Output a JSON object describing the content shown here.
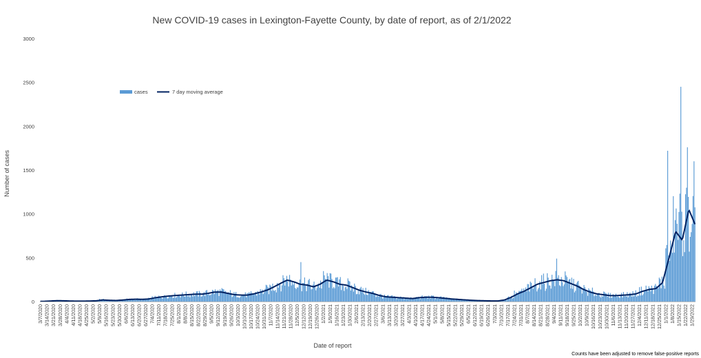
{
  "chart_data": {
    "type": "bar",
    "title": "New COVID-19 cases in Lexington-Fayette County, by date of report, as of 2/1/2022",
    "xlabel": "Date of report",
    "ylabel": "Number of cases",
    "ylim": [
      0,
      3000
    ],
    "yticks": [
      0,
      500,
      1000,
      1500,
      2000,
      2500,
      3000
    ],
    "x_start": "3/7/2020",
    "x_end": "2/1/2022",
    "xtick_labels": [
      "3/7/2020",
      "3/14/2020",
      "3/21/2020",
      "3/28/2020",
      "4/4/2020",
      "4/11/2020",
      "4/18/2020",
      "4/25/2020",
      "5/2/2020",
      "5/9/2020",
      "5/16/2020",
      "5/23/2020",
      "5/30/2020",
      "6/6/2020",
      "6/13/2020",
      "6/20/2020",
      "6/27/2020",
      "7/4/2020",
      "7/11/2020",
      "7/18/2020",
      "7/25/2020",
      "8/1/2020",
      "8/8/2020",
      "8/15/2020",
      "8/22/2020",
      "8/29/2020",
      "9/5/2020",
      "9/12/2020",
      "9/19/2020",
      "9/26/2020",
      "10/3/2020",
      "10/10/2020",
      "10/17/2020",
      "10/24/2020",
      "10/31/2020",
      "11/7/2020",
      "11/14/2020",
      "11/21/2020",
      "11/28/2020",
      "12/5/2020",
      "12/12/2020",
      "12/19/2020",
      "12/26/2020",
      "1/2/2021",
      "1/9/2021",
      "1/16/2021",
      "1/23/2021",
      "1/30/2021",
      "2/6/2021",
      "2/13/2021",
      "2/20/2021",
      "2/27/2021",
      "3/6/2021",
      "3/13/2021",
      "3/20/2021",
      "3/27/2021",
      "4/3/2021",
      "4/10/2021",
      "4/17/2021",
      "4/24/2021",
      "5/1/2021",
      "5/8/2021",
      "5/15/2021",
      "5/22/2021",
      "5/29/2021",
      "6/5/2021",
      "6/12/2021",
      "6/19/2021",
      "6/26/2021",
      "7/3/2021",
      "7/10/2021",
      "7/17/2021",
      "7/24/2021",
      "7/31/2021",
      "8/7/2021",
      "8/14/2021",
      "8/21/2021",
      "8/28/2021",
      "9/4/2021",
      "9/11/2021",
      "9/18/2021",
      "9/25/2021",
      "10/2/2021",
      "10/9/2021",
      "10/16/2021",
      "10/23/2021",
      "10/30/2021",
      "11/6/2021",
      "11/13/2021",
      "11/20/2021",
      "11/27/2021",
      "12/4/2021",
      "12/11/2021",
      "12/18/2021",
      "12/25/2021",
      "1/1/2022",
      "1/8/2022",
      "1/15/2022",
      "1/22/2022",
      "1/29/2022"
    ],
    "series": [
      {
        "name": "cases",
        "type": "bar",
        "color": "#5b9bd5"
      },
      {
        "name": "7 day moving average",
        "type": "line",
        "color": "#002060"
      }
    ],
    "cases_weekly_avg": [
      3,
      8,
      12,
      10,
      6,
      5,
      5,
      6,
      10,
      22,
      15,
      12,
      18,
      25,
      28,
      25,
      30,
      45,
      55,
      65,
      70,
      75,
      80,
      85,
      85,
      95,
      110,
      110,
      95,
      80,
      75,
      75,
      90,
      110,
      135,
      170,
      210,
      250,
      230,
      200,
      190,
      170,
      200,
      250,
      230,
      200,
      190,
      160,
      130,
      110,
      95,
      70,
      55,
      50,
      45,
      40,
      35,
      45,
      50,
      50,
      45,
      38,
      30,
      25,
      20,
      15,
      12,
      10,
      8,
      8,
      20,
      50,
      90,
      120,
      160,
      200,
      220,
      240,
      250,
      240,
      210,
      180,
      140,
      110,
      90,
      80,
      70,
      70,
      75,
      80,
      90,
      120,
      140,
      150,
      220,
      500,
      850,
      900,
      950,
      870
    ],
    "avg_weekly": [
      2,
      6,
      10,
      9,
      6,
      5,
      5,
      6,
      9,
      18,
      14,
      12,
      17,
      24,
      27,
      25,
      29,
      44,
      54,
      63,
      69,
      74,
      79,
      84,
      84,
      94,
      108,
      108,
      93,
      78,
      74,
      74,
      89,
      108,
      132,
      168,
      208,
      245,
      225,
      197,
      188,
      168,
      198,
      245,
      225,
      197,
      187,
      158,
      128,
      108,
      93,
      69,
      54,
      49,
      44,
      39,
      34,
      44,
      49,
      49,
      44,
      37,
      29,
      24,
      19,
      14,
      11,
      9,
      7,
      7,
      18,
      48,
      88,
      118,
      158,
      198,
      218,
      238,
      248,
      238,
      208,
      178,
      138,
      108,
      88,
      78,
      68,
      68,
      73,
      78,
      88,
      118,
      138,
      148,
      215,
      500,
      800,
      700,
      1050,
      870
    ],
    "spikes": [
      {
        "date": "1/3/2022",
        "cases": 1720
      },
      {
        "date": "1/17/2022",
        "cases": 2450
      },
      {
        "date": "1/24/2022",
        "cases": 1760
      },
      {
        "date": "1/31/2022",
        "cases": 1600
      },
      {
        "date": "9/7/2021",
        "cases": 490
      },
      {
        "date": "12/9/2020",
        "cases": 450
      }
    ]
  },
  "legend": {
    "cases": "cases",
    "avg": "7 day moving average",
    "position": "top-left"
  },
  "footnote": "Counts have been adjusted to remove false-positive reports"
}
